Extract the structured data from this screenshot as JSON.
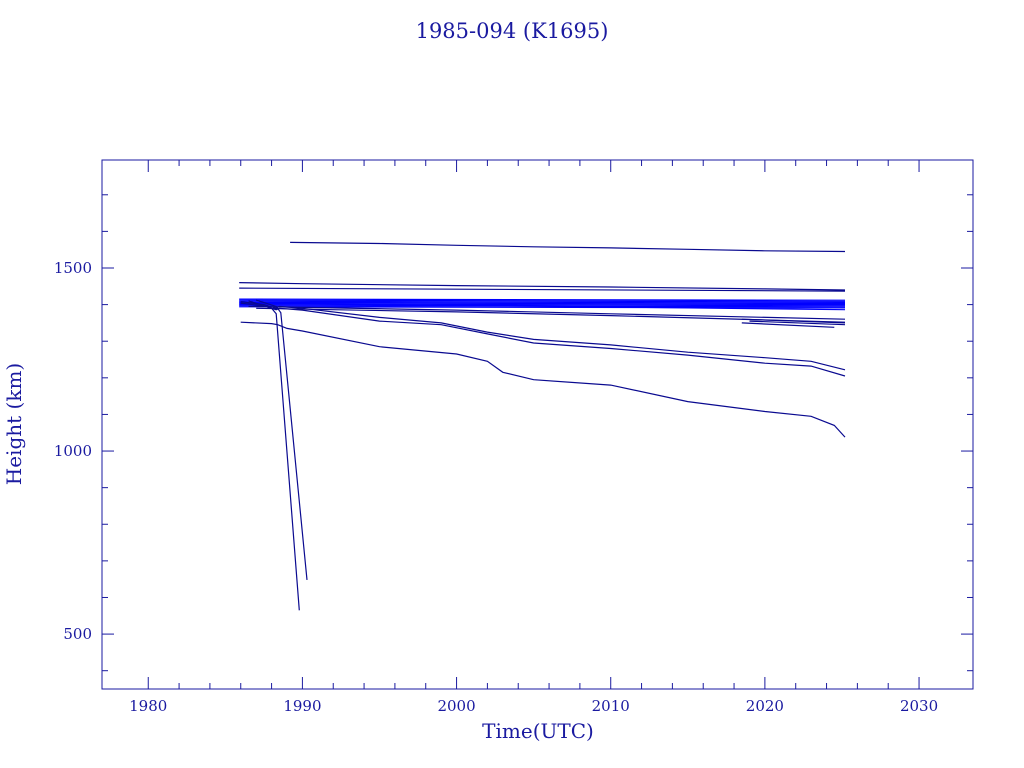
{
  "colors": {
    "axis": "#1a1aa0",
    "line": "#0a0a90",
    "band": "#0000ff"
  },
  "chart_data": {
    "type": "line",
    "title": "1985-094 (K1695)",
    "xlabel": "Time(UTC)",
    "ylabel": "Height (km)",
    "xlim": [
      1977,
      2033.5
    ],
    "ylim": [
      350,
      1795
    ],
    "xticks": [
      1980,
      1990,
      2000,
      2010,
      2020,
      2030
    ],
    "yticks": [
      500,
      1000,
      1500
    ],
    "grid": false,
    "series": [
      {
        "x": [
          1989.2,
          1995,
          2000,
          2005,
          2010,
          2015,
          2020,
          2025.2
        ],
        "y": [
          1570,
          1567,
          1562,
          1558,
          1555,
          1551,
          1547,
          1545
        ]
      },
      {
        "x": [
          1985.9,
          1990,
          2000,
          2010,
          2020,
          2025.2
        ],
        "y": [
          1460,
          1457,
          1452,
          1448,
          1443,
          1440
        ]
      },
      {
        "x": [
          1985.9,
          2025.2
        ],
        "y": [
          1445,
          1437
        ]
      },
      {
        "x": [
          1985.9,
          2025.2
        ],
        "y": [
          1415,
          1412
        ]
      },
      {
        "x": [
          1985.9,
          2025.2
        ],
        "y": [
          1412,
          1409
        ]
      },
      {
        "x": [
          1985.9,
          2025.2
        ],
        "y": [
          1409,
          1406
        ]
      },
      {
        "x": [
          1985.9,
          2025.2
        ],
        "y": [
          1406,
          1403
        ]
      },
      {
        "x": [
          1985.9,
          2025.2
        ],
        "y": [
          1403,
          1400
        ]
      },
      {
        "x": [
          1985.9,
          2025.2
        ],
        "y": [
          1400,
          1397
        ]
      },
      {
        "x": [
          1985.9,
          2025.2
        ],
        "y": [
          1397,
          1394
        ]
      },
      {
        "x": [
          1985.9,
          2025.2
        ],
        "y": [
          1394,
          1391
        ]
      },
      {
        "x": [
          1986.5,
          2000,
          2025.2
        ],
        "y": [
          1405,
          1398,
          1386
        ]
      },
      {
        "x": [
          1986.5,
          2000,
          2010,
          2025.2
        ],
        "y": [
          1395,
          1385,
          1375,
          1360
        ]
      },
      {
        "x": [
          1987,
          2000,
          2010,
          2025.2
        ],
        "y": [
          1390,
          1380,
          1370,
          1352
        ]
      },
      {
        "x": [
          2018.5,
          2025.2
        ],
        "y": [
          1360,
          1350
        ]
      },
      {
        "x": [
          2018.5,
          2024.5
        ],
        "y": [
          1350,
          1338
        ]
      },
      {
        "x": [
          2019,
          2025.2
        ],
        "y": [
          1355,
          1345
        ]
      },
      {
        "x": [
          1986,
          1987.5,
          1988.3,
          1988.5,
          1990,
          1995,
          1999,
          2002,
          2005,
          2010,
          2015,
          2020,
          2023,
          2025.2
        ],
        "y": [
          1408,
          1400,
          1390,
          1395,
          1390,
          1365,
          1350,
          1325,
          1305,
          1290,
          1270,
          1255,
          1245,
          1222
        ]
      },
      {
        "x": [
          1986,
          1987.5,
          1988.3,
          1988.5,
          1990,
          1995,
          1999,
          2002,
          2005,
          2010,
          2015,
          2020,
          2023,
          2025.2
        ],
        "y": [
          1404,
          1396,
          1386,
          1390,
          1385,
          1355,
          1345,
          1320,
          1295,
          1280,
          1262,
          1240,
          1232,
          1205
        ]
      },
      {
        "x": [
          1986,
          1988,
          1988.4,
          1989,
          1990,
          1995,
          2000,
          2002,
          2003,
          2005,
          2010,
          2015,
          2020,
          2023,
          2024.5,
          2025.2
        ],
        "y": [
          1352,
          1348,
          1345,
          1335,
          1328,
          1285,
          1265,
          1245,
          1215,
          1195,
          1180,
          1135,
          1108,
          1095,
          1070,
          1038
        ]
      },
      {
        "x": [
          1986.5,
          1988,
          1988.3,
          1989.8
        ],
        "y": [
          1410,
          1390,
          1375,
          565
        ]
      },
      {
        "x": [
          1987,
          1988.3,
          1988.6,
          1990.3
        ],
        "y": [
          1412,
          1395,
          1378,
          648
        ]
      }
    ]
  }
}
